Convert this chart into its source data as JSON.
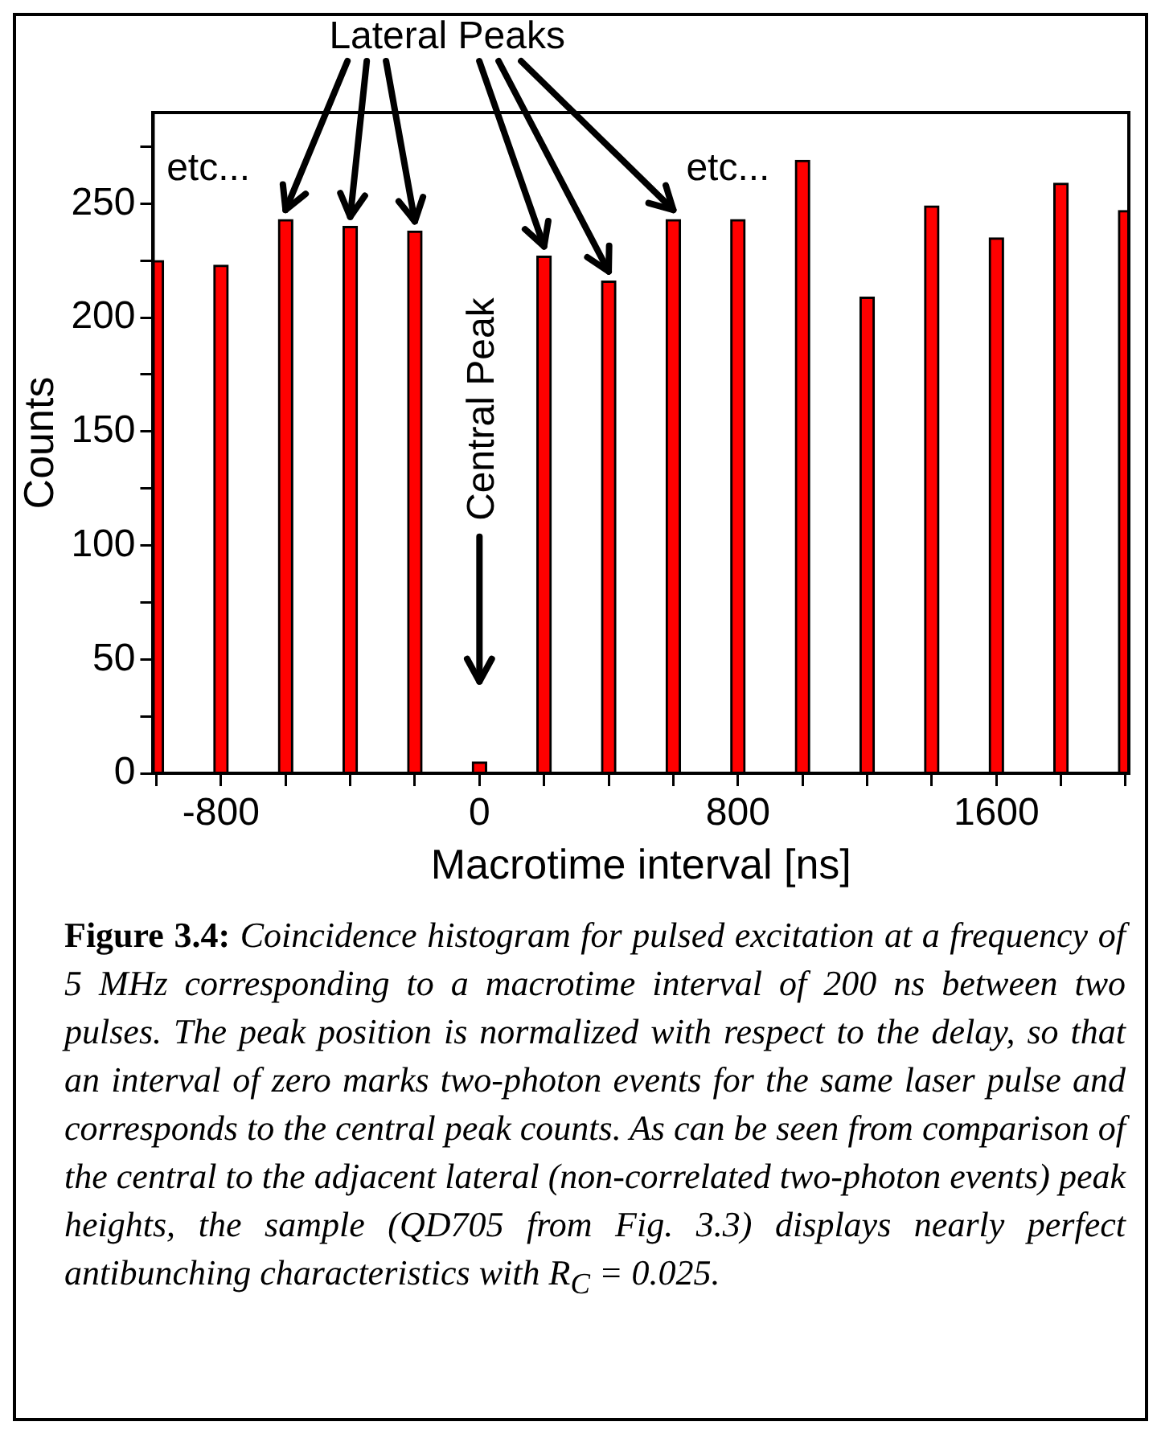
{
  "chart_data": {
    "type": "bar",
    "xlabel": "Macrotime interval [ns]",
    "ylabel": "Counts",
    "x": [
      -1000,
      -800,
      -600,
      -400,
      -200,
      0,
      200,
      400,
      600,
      800,
      1000,
      1200,
      1400,
      1600,
      1800,
      2000
    ],
    "values": [
      225,
      223,
      243,
      240,
      238,
      5,
      227,
      216,
      243,
      243,
      269,
      209,
      249,
      235,
      259,
      247
    ],
    "color": "#ff0000",
    "xlim": [
      -1010,
      2010
    ],
    "xticks": [
      {
        "value": -1000,
        "label": null
      },
      -800,
      {
        "value": -600,
        "label": null
      },
      {
        "value": -400,
        "label": null
      },
      {
        "value": -200,
        "label": null
      },
      0,
      {
        "value": 200,
        "label": null
      },
      {
        "value": 400,
        "label": null
      },
      {
        "value": 600,
        "label": null
      },
      800,
      {
        "value": 1000,
        "label": null
      },
      {
        "value": 1200,
        "label": null
      },
      {
        "value": 1400,
        "label": null
      },
      1600,
      {
        "value": 1800,
        "label": null
      },
      {
        "value": 2000,
        "label": null
      }
    ],
    "ylim": [
      0,
      290
    ],
    "yticks": [
      0,
      {
        "value": 25,
        "label": null
      },
      50,
      {
        "value": 75,
        "label": null
      },
      100,
      {
        "value": 125,
        "label": null
      },
      150,
      {
        "value": 175,
        "label": null
      },
      200,
      {
        "value": 225,
        "label": null
      },
      250,
      {
        "value": 275,
        "label": null
      }
    ],
    "grid": false,
    "legend": false,
    "annotations": [
      "Lateral Peaks",
      "etc...",
      "etc...",
      "Central Peak",
      "Figure 3.4: Coincidence histogram for pulsed excitation at a frequency of 5 MHz corresponding to a macrotime interval of 200 ns between two pulses. The peak position is normalized with respect to the delay, so that an interval of zero marks two-photon events for the same laser pulse and corresponds to the central peak counts. As can be seen from comparison of the central to the adjacent lateral (non-correlated two-photon events) peak heights, the sample (QD705 from Fig. 3.3) displays nearly perfect antibunching characteristics with R$_{C}$ = 0.025."
    ]
  }
}
